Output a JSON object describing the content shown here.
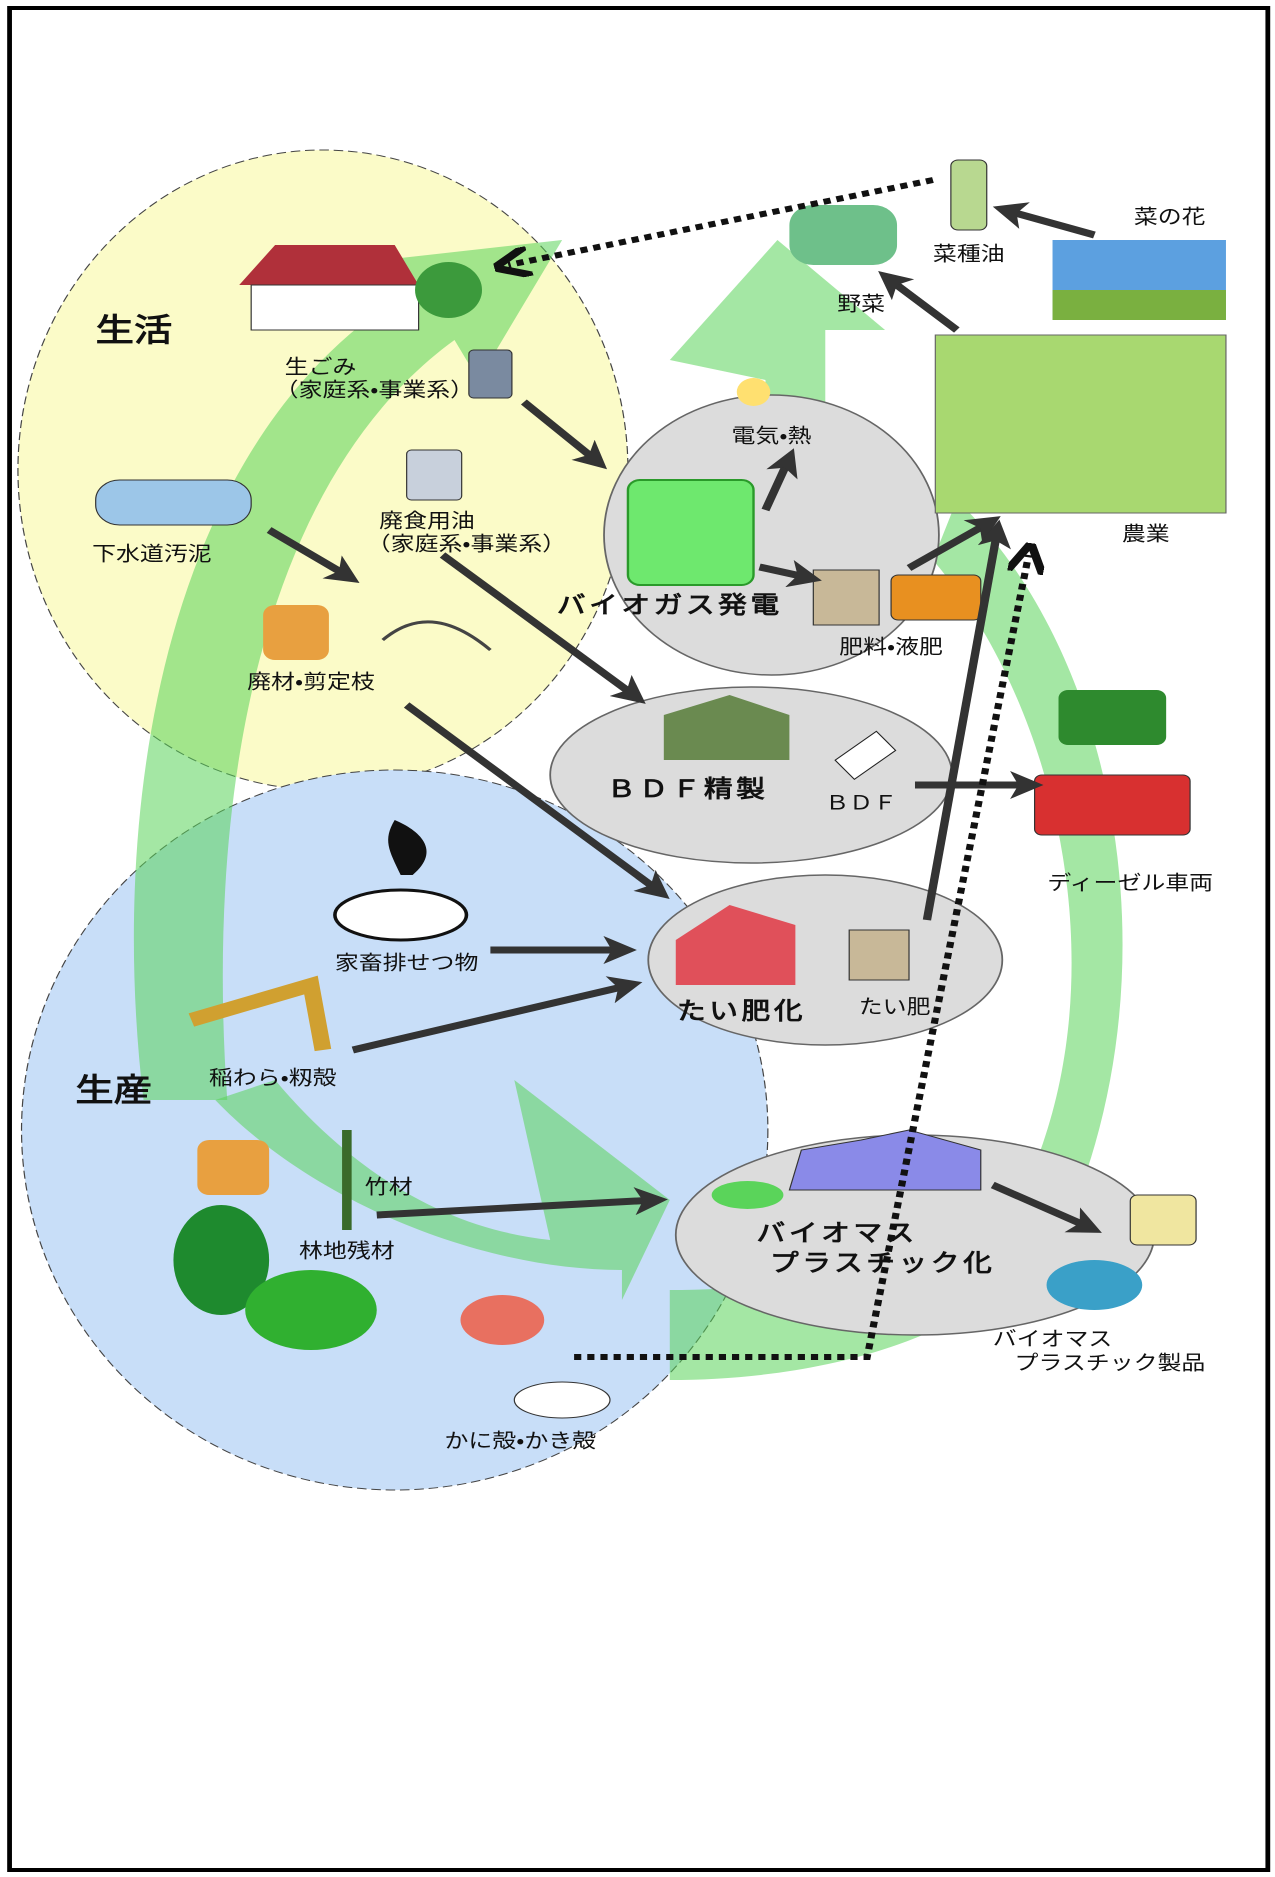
{
  "regions": {
    "life": "生活",
    "production": "生産"
  },
  "inputs": [
    {
      "lines": [
        "生ごみ",
        "（家庭系・事業系）"
      ]
    },
    {
      "lines": [
        "下水道汚泥"
      ]
    },
    {
      "lines": [
        "廃食用油",
        "（家庭系・事業系）"
      ]
    },
    {
      "lines": [
        "廃材・剪定枝"
      ]
    },
    {
      "lines": [
        "家畜排せつ物"
      ]
    },
    {
      "lines": [
        "稲わら・籾殻"
      ]
    },
    {
      "lines": [
        "竹材"
      ]
    },
    {
      "lines": [
        "林地残材"
      ]
    },
    {
      "lines": [
        "かに殻・かき殻"
      ]
    }
  ],
  "processes": [
    {
      "lines": [
        "バイオガス発電"
      ]
    },
    {
      "lines": [
        "ＢＤＦ精製"
      ]
    },
    {
      "lines": [
        "たい肥化"
      ]
    },
    {
      "lines": [
        "バイオマス",
        "プラスチック化"
      ]
    }
  ],
  "products": [
    {
      "lines": [
        "電気・熱"
      ]
    },
    {
      "lines": [
        "肥料・液肥"
      ]
    },
    {
      "lines": [
        "ＢＤＦ"
      ]
    },
    {
      "lines": [
        "たい肥"
      ]
    },
    {
      "lines": [
        "バイオマス",
        "プラスチック製品"
      ]
    }
  ],
  "uses": [
    {
      "lines": [
        "野菜"
      ]
    },
    {
      "lines": [
        "菜種油"
      ]
    },
    {
      "lines": [
        "菜の花"
      ]
    },
    {
      "lines": [
        "農業"
      ]
    },
    {
      "lines": [
        "ディーゼル車両"
      ]
    }
  ]
}
